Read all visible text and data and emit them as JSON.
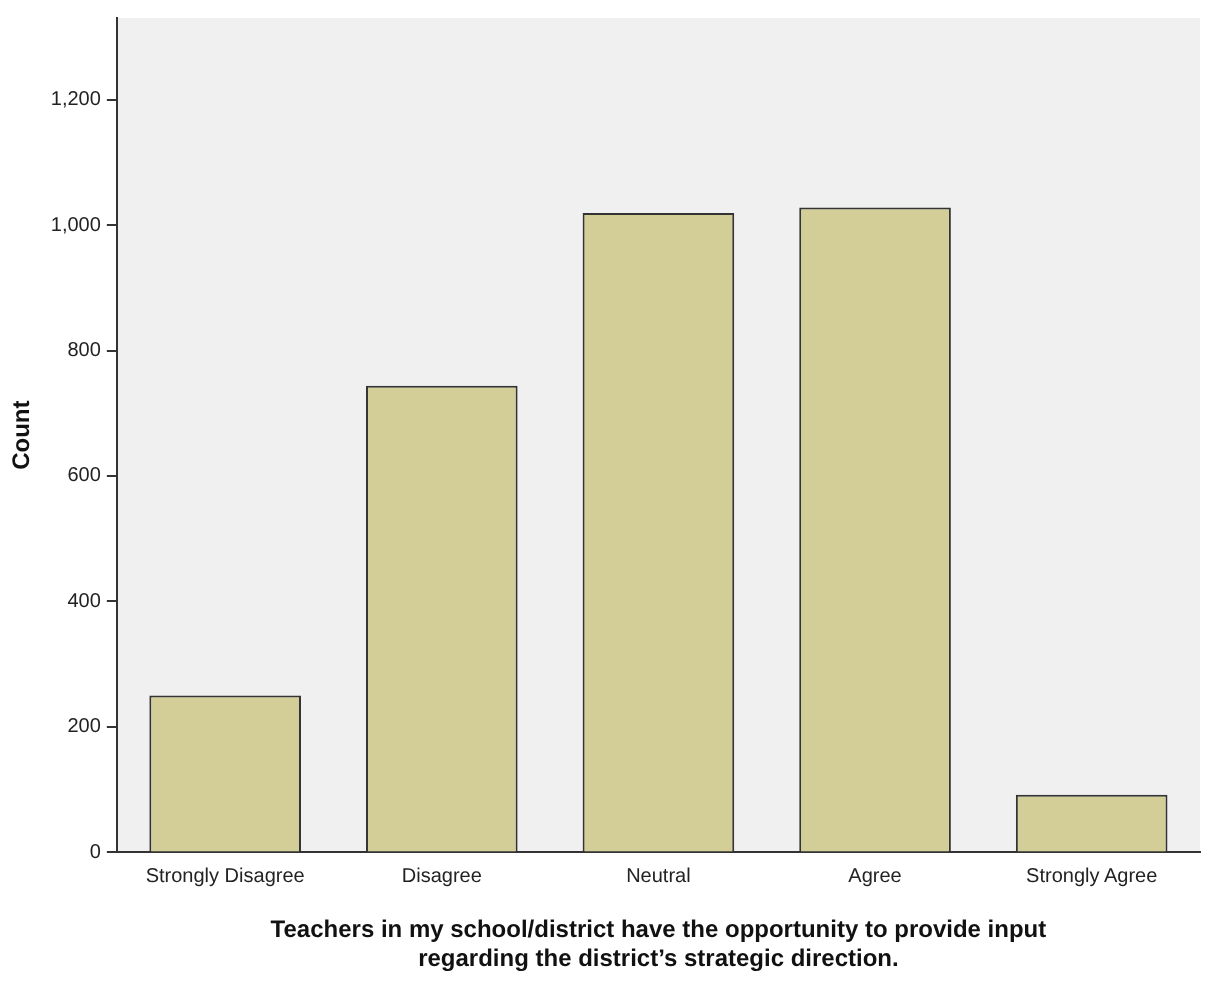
{
  "chart_data": {
    "type": "bar",
    "xlabel": "Teachers in my school/district have the opportunity to provide input\nregarding the district’s strategic direction.",
    "ylabel": "Count",
    "categories": [
      "Strongly Disagree",
      "Disagree",
      "Neutral",
      "Agree",
      "Strongly Agree"
    ],
    "values": [
      250,
      744,
      1019,
      1028,
      92
    ],
    "color": "#d3ce97",
    "ylim": [
      0,
      1330
    ],
    "yticks": [
      0,
      200,
      400,
      600,
      800,
      {
        "value": 1000,
        "label": "1,000"
      },
      {
        "value": 1200,
        "label": "1,200"
      }
    ],
    "grid": false,
    "legend": false
  }
}
